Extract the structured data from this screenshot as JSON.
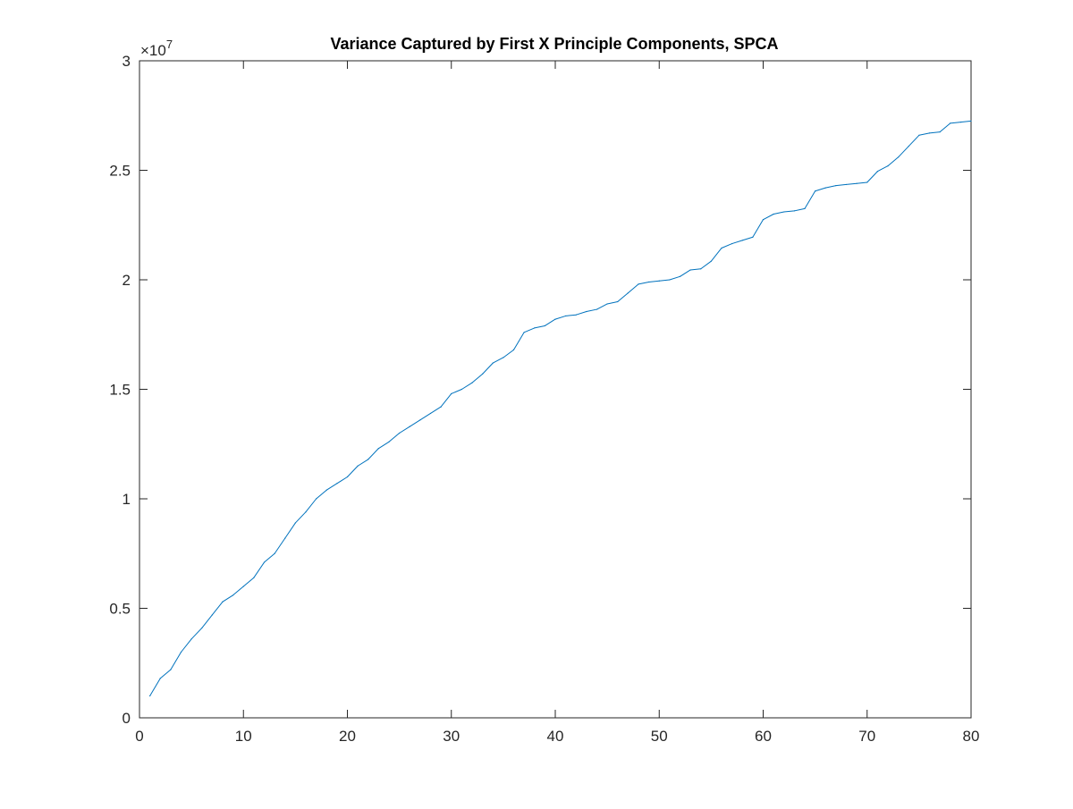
{
  "chart_data": {
    "type": "line",
    "title": "Variance Captured by First X Principle Components, SPCA",
    "xlabel": "",
    "ylabel": "",
    "xlim": [
      0,
      80
    ],
    "ylim": [
      0,
      3
    ],
    "y_exponent_base": "×10",
    "y_exponent_power": "7",
    "xticks": [
      0,
      10,
      20,
      30,
      40,
      50,
      60,
      70,
      80
    ],
    "xtick_labels": [
      "0",
      "10",
      "20",
      "30",
      "40",
      "50",
      "60",
      "70",
      "80"
    ],
    "yticks": [
      0,
      0.5,
      1,
      1.5,
      2,
      2.5,
      3
    ],
    "ytick_labels": [
      "0",
      "0.5",
      "1",
      "1.5",
      "2",
      "2.5",
      "3"
    ],
    "grid": false,
    "box": true,
    "series": [
      {
        "color": "#0072BD",
        "x": [
          1,
          2,
          3,
          4,
          5,
          6,
          7,
          8,
          9,
          10,
          11,
          12,
          13,
          14,
          15,
          16,
          17,
          18,
          19,
          20,
          21,
          22,
          23,
          24,
          25,
          26,
          27,
          28,
          29,
          30,
          31,
          32,
          33,
          34,
          35,
          36,
          37,
          38,
          39,
          40,
          41,
          42,
          43,
          44,
          45,
          46,
          47,
          48,
          49,
          50,
          51,
          52,
          53,
          54,
          55,
          56,
          57,
          58,
          59,
          60,
          61,
          62,
          63,
          64,
          65,
          66,
          67,
          68,
          69,
          70,
          71,
          72,
          73,
          74,
          75,
          76,
          77,
          78,
          79,
          80
        ],
        "y": [
          0.1,
          0.18,
          0.22,
          0.3,
          0.36,
          0.41,
          0.47,
          0.53,
          0.56,
          0.6,
          0.64,
          0.71,
          0.75,
          0.82,
          0.89,
          0.94,
          1.0,
          1.04,
          1.07,
          1.1,
          1.15,
          1.18,
          1.23,
          1.26,
          1.3,
          1.33,
          1.36,
          1.39,
          1.42,
          1.48,
          1.5,
          1.53,
          1.57,
          1.62,
          1.645,
          1.68,
          1.76,
          1.78,
          1.79,
          1.82,
          1.835,
          1.84,
          1.855,
          1.865,
          1.89,
          1.9,
          1.94,
          1.98,
          1.99,
          1.995,
          2.0,
          2.015,
          2.045,
          2.05,
          2.085,
          2.145,
          2.165,
          2.18,
          2.195,
          2.275,
          2.3,
          2.31,
          2.315,
          2.325,
          2.405,
          2.42,
          2.43,
          2.435,
          2.44,
          2.445,
          2.495,
          2.52,
          2.56,
          2.61,
          2.66,
          2.67,
          2.675,
          2.715,
          2.72,
          2.725
        ]
      }
    ]
  }
}
